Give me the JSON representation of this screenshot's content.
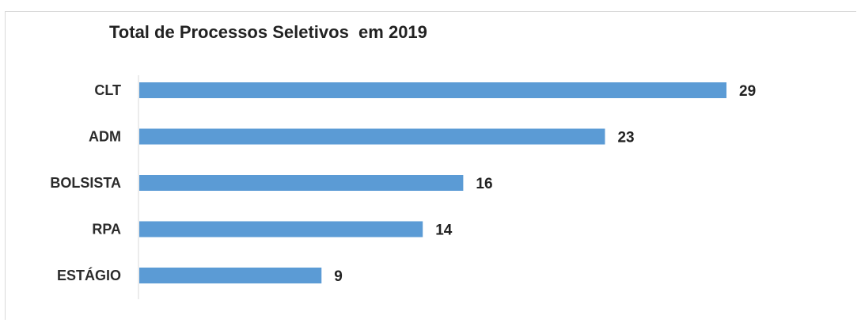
{
  "chart_data": {
    "type": "bar",
    "orientation": "horizontal",
    "title": "Total de Processos Seletivos  em 2019",
    "categories": [
      "CLT",
      "ADM",
      "BOLSISTA",
      "RPA",
      "ESTÁGIO"
    ],
    "values": [
      29,
      23,
      16,
      14,
      9
    ],
    "xlabel": "",
    "ylabel": "",
    "xlim": [
      0,
      29
    ],
    "grid": false,
    "legend": "none",
    "data_labels": true,
    "bar_color": "#5b9bd5"
  }
}
